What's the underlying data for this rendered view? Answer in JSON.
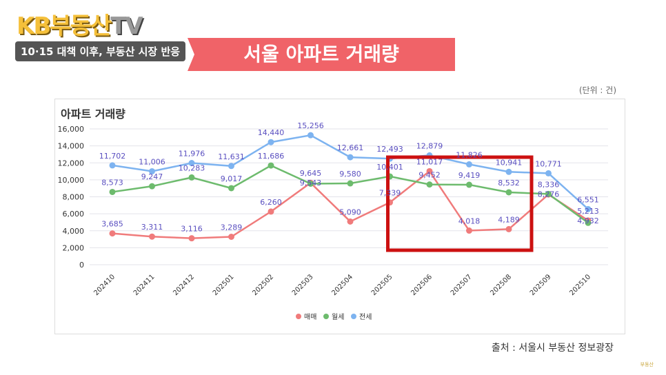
{
  "header": {
    "logo_main": "KB부동산",
    "logo_tv": "TV",
    "subtitle": "10·15 대책 이후, 부동산 시장 반응",
    "banner": "서울 아파트 거래량"
  },
  "unit": "(단위 : 건)",
  "source": "출처 : 서울시 부동산 정보광장",
  "watermark": "부동산",
  "chart_data": {
    "type": "line",
    "title": "아파트 거래량",
    "categories": [
      "202410",
      "202411",
      "202412",
      "202501",
      "202502",
      "202503",
      "202504",
      "202505",
      "202506",
      "202507",
      "202508",
      "202509",
      "202510"
    ],
    "ylim": [
      0,
      16000
    ],
    "yticks": [
      0,
      2000,
      4000,
      6000,
      8000,
      10000,
      12000,
      14000,
      16000
    ],
    "grid": true,
    "legend": "bottom",
    "series": [
      {
        "name": "매매",
        "color": "#f07b7b",
        "values": [
          3685,
          3311,
          3116,
          3289,
          6260,
          9645,
          5090,
          7339,
          11017,
          4018,
          4189,
          8276,
          5213
        ]
      },
      {
        "name": "월세",
        "color": "#6dbb6d",
        "values": [
          8573,
          9247,
          10283,
          9017,
          11686,
          9543,
          9580,
          10401,
          9452,
          9419,
          8532,
          8336,
          4932
        ]
      },
      {
        "name": "전세",
        "color": "#7db3f0",
        "values": [
          11702,
          11006,
          11976,
          11631,
          14440,
          15256,
          12661,
          12493,
          12879,
          11826,
          10941,
          10771,
          6551
        ]
      }
    ],
    "annotation": {
      "type": "highlight-box",
      "color": "#cc1111",
      "from": "202505",
      "to": "202508"
    }
  }
}
